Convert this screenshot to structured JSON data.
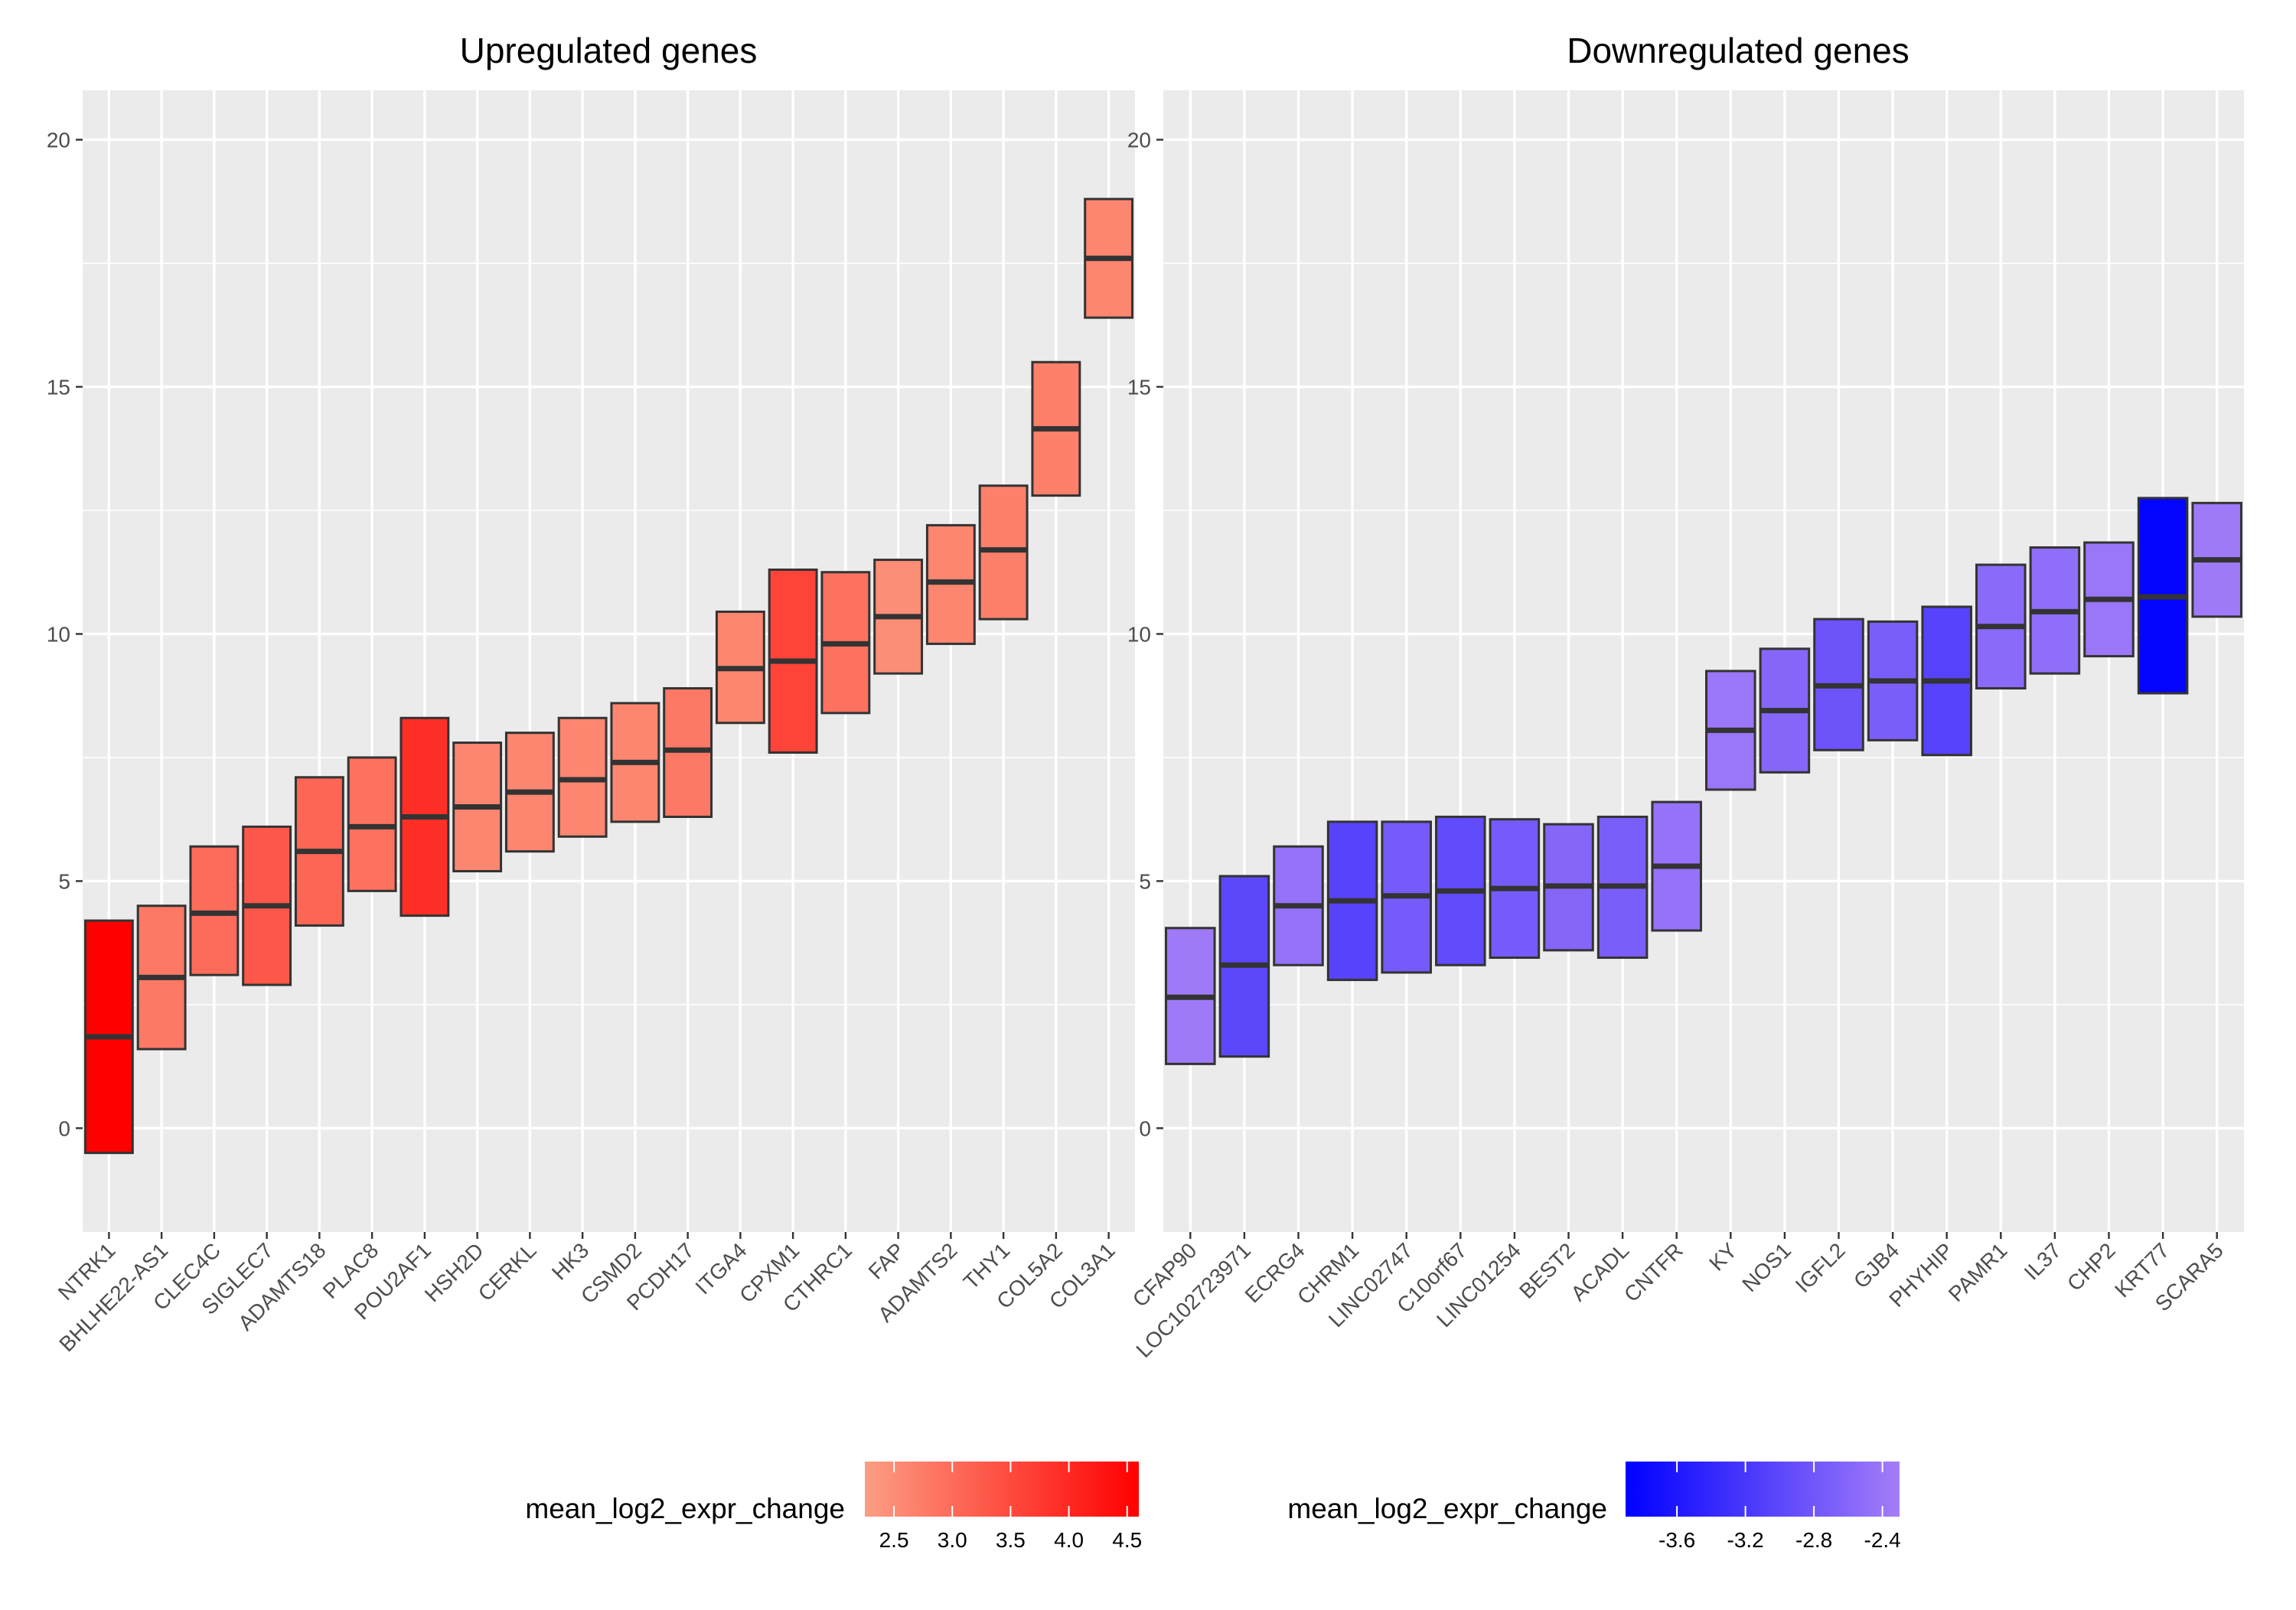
{
  "chart_data": [
    {
      "type": "box",
      "title": "Upregulated genes",
      "xlabel": "",
      "ylabel": "",
      "ylim": [
        -2.1,
        21.0
      ],
      "y_ticks": [
        0,
        5,
        10,
        15,
        20
      ],
      "grid": true,
      "categories": [
        "NTRK1",
        "BHLHE22-AS1",
        "CLEC4C",
        "SIGLEC7",
        "ADAMTS18",
        "PLAC8",
        "POU2AF1",
        "HSH2D",
        "CERKL",
        "HK3",
        "CSMD2",
        "PCDH17",
        "ITGA4",
        "CPXM1",
        "CTHRC1",
        "FAP",
        "ADAMTS2",
        "THY1",
        "COL5A2",
        "COL3A1"
      ],
      "lower": [
        -0.5,
        1.6,
        3.1,
        2.9,
        4.1,
        4.8,
        4.3,
        5.2,
        5.6,
        5.9,
        6.2,
        6.3,
        8.2,
        7.6,
        8.4,
        9.2,
        9.8,
        10.3,
        12.8,
        16.4
      ],
      "median": [
        1.85,
        3.05,
        4.35,
        4.5,
        5.6,
        6.1,
        6.3,
        6.5,
        6.8,
        7.05,
        7.4,
        7.65,
        9.3,
        9.45,
        9.8,
        10.35,
        11.05,
        11.7,
        14.15,
        17.6
      ],
      "upper": [
        4.2,
        4.5,
        5.7,
        6.1,
        7.1,
        7.5,
        8.3,
        7.8,
        8.0,
        8.3,
        8.6,
        8.9,
        10.45,
        11.3,
        11.25,
        11.5,
        12.2,
        13.0,
        15.5,
        18.8
      ],
      "fill_value": [
        4.6,
        2.8,
        3.0,
        3.3,
        3.1,
        2.9,
        3.9,
        2.6,
        2.6,
        2.6,
        2.6,
        2.8,
        2.6,
        3.6,
        2.9,
        2.5,
        2.6,
        2.7,
        2.7,
        2.6
      ],
      "legend": {
        "title": "mean_log2_expr_change",
        "ticks": [
          "2.5",
          "3.0",
          "3.5",
          "4.0",
          "4.5"
        ],
        "tick_values": [
          2.5,
          3.0,
          3.5,
          4.0,
          4.5
        ],
        "range": [
          2.25,
          4.6
        ],
        "color_low": "#fc9e84",
        "color_high": "#ff0000",
        "placement": "bottom"
      }
    },
    {
      "type": "box",
      "title": "Downregulated genes",
      "xlabel": "",
      "ylabel": "",
      "ylim": [
        -2.1,
        21.0
      ],
      "y_ticks": [
        0,
        5,
        10,
        15,
        20
      ],
      "grid": true,
      "categories": [
        "CFAP90",
        "LOC102723971",
        "ECRG4",
        "CHRM1",
        "LINC02747",
        "C10orf67",
        "LINC01254",
        "BEST2",
        "ACADL",
        "CNTFR",
        "KY",
        "NOS1",
        "IGFL2",
        "GJB4",
        "PHYHIP",
        "PAMR1",
        "IL37",
        "CHP2",
        "KRT77",
        "SCARA5"
      ],
      "lower": [
        1.3,
        1.45,
        3.3,
        3.0,
        3.15,
        3.3,
        3.45,
        3.6,
        3.45,
        4.0,
        6.85,
        7.2,
        7.65,
        7.85,
        7.55,
        8.9,
        9.2,
        9.55,
        8.8,
        10.35
      ],
      "median": [
        2.65,
        3.3,
        4.5,
        4.6,
        4.7,
        4.8,
        4.85,
        4.9,
        4.9,
        5.3,
        8.05,
        8.45,
        8.95,
        9.05,
        9.05,
        10.15,
        10.45,
        10.7,
        10.75,
        11.5
      ],
      "upper": [
        4.05,
        5.1,
        5.7,
        6.2,
        6.2,
        6.3,
        6.25,
        6.15,
        6.3,
        6.6,
        9.25,
        9.7,
        10.3,
        10.25,
        10.55,
        11.4,
        11.75,
        11.85,
        12.75,
        12.65
      ],
      "fill_value": [
        -2.35,
        -3.0,
        -2.45,
        -3.05,
        -2.75,
        -2.95,
        -2.75,
        -2.6,
        -2.7,
        -2.45,
        -2.4,
        -2.6,
        -2.85,
        -2.7,
        -3.05,
        -2.55,
        -2.5,
        -2.4,
        -3.85,
        -2.35
      ],
      "legend": {
        "title": "mean_log2_expr_change",
        "ticks": [
          "-3.6",
          "-3.2",
          "-2.8",
          "-2.4"
        ],
        "tick_values": [
          -3.6,
          -3.2,
          -2.8,
          -2.4
        ],
        "range": [
          -3.9,
          -2.3
        ],
        "color_low": "#0000ff",
        "color_high": "#a47ef8",
        "placement": "bottom"
      }
    }
  ]
}
